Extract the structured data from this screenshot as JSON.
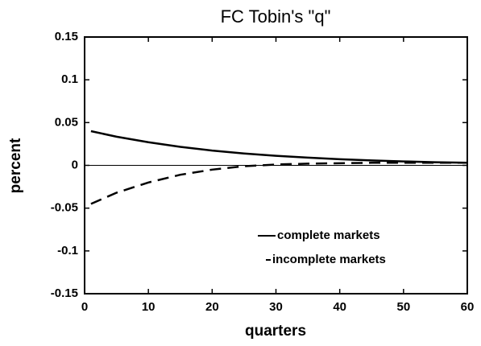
{
  "chart_data": {
    "type": "line",
    "title": "FC Tobin's \"q\"",
    "x_label": "quarters",
    "y_label": "percent",
    "x": [
      1,
      5,
      10,
      15,
      20,
      25,
      30,
      35,
      40,
      45,
      50,
      55,
      60
    ],
    "series": [
      {
        "name": "complete markets",
        "color": "#000000",
        "dash": "solid",
        "values": [
          0.04,
          0.0335,
          0.027,
          0.0216,
          0.0173,
          0.0139,
          0.0112,
          0.009,
          0.0072,
          0.0058,
          0.0046,
          0.0037,
          0.003
        ]
      },
      {
        "name": "incomplete markets",
        "color": "#000000",
        "dash": "dashed",
        "values": [
          -0.045,
          -0.032,
          -0.02,
          -0.011,
          -0.005,
          -0.001,
          0.001,
          0.002,
          0.0025,
          0.003,
          0.003,
          0.003,
          0.003
        ]
      }
    ],
    "xlim": [
      0,
      60
    ],
    "xticks": [
      0,
      10,
      20,
      30,
      40,
      50,
      60
    ],
    "ylim": [
      -0.15,
      0.15
    ],
    "yticks": [
      0.15,
      0.1,
      0.05,
      0,
      -0.05,
      -0.1,
      -0.15
    ],
    "reference_line": 0,
    "legend": "lower right",
    "grid": false
  }
}
